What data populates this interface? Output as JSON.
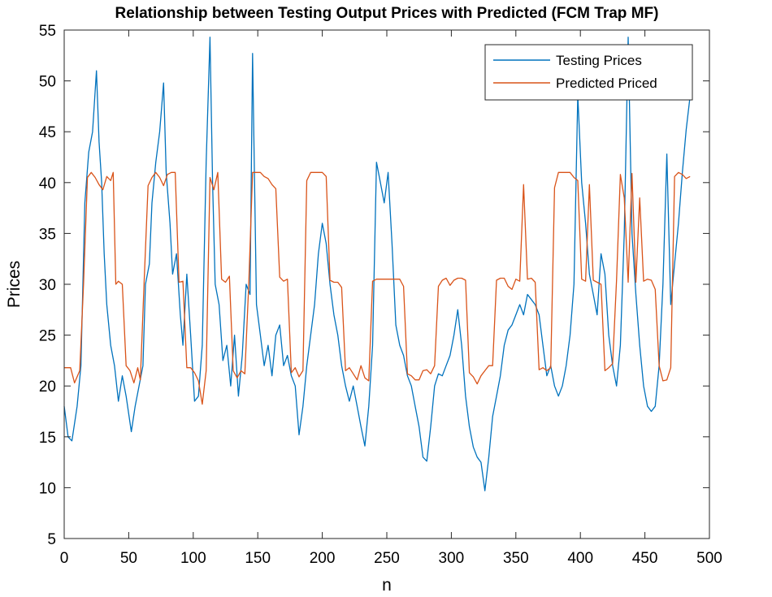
{
  "chart_data": {
    "type": "line",
    "title": "Relationship between Testing Output Prices with Predicted (FCM Trap MF)",
    "xlabel": "n",
    "ylabel": "Prices",
    "xlim": [
      0,
      500
    ],
    "ylim": [
      5,
      55
    ],
    "xticks": [
      "0",
      "50",
      "100",
      "150",
      "200",
      "250",
      "300",
      "350",
      "400",
      "450",
      "500"
    ],
    "yticks": [
      "5",
      "10",
      "15",
      "20",
      "25",
      "30",
      "35",
      "40",
      "45",
      "50",
      "55"
    ],
    "grid": false,
    "legend_position": "top-right",
    "series": [
      {
        "name": "Testing Prices",
        "color": "#0072BD",
        "x": [
          0,
          3,
          6,
          10,
          13,
          16,
          19,
          22,
          25,
          27,
          29,
          31,
          33,
          36,
          39,
          42,
          45,
          48,
          52,
          55,
          58,
          61,
          63,
          66,
          68,
          71,
          74,
          77,
          79,
          82,
          84,
          87,
          90,
          92,
          95,
          98,
          101,
          104,
          107,
          110,
          113,
          115,
          117,
          120,
          123,
          126,
          129,
          132,
          135,
          138,
          141,
          144,
          146,
          149,
          152,
          155,
          158,
          161,
          164,
          167,
          170,
          173,
          176,
          179,
          182,
          185,
          188,
          191,
          194,
          197,
          200,
          203,
          206,
          209,
          212,
          215,
          218,
          221,
          224,
          227,
          230,
          233,
          236,
          239,
          242,
          245,
          248,
          251,
          254,
          257,
          260,
          263,
          266,
          269,
          272,
          275,
          278,
          281,
          284,
          287,
          290,
          293,
          296,
          299,
          302,
          305,
          308,
          311,
          314,
          317,
          320,
          323,
          326,
          329,
          332,
          335,
          338,
          341,
          344,
          347,
          350,
          353,
          356,
          359,
          362,
          365,
          368,
          371,
          374,
          377,
          380,
          383,
          386,
          389,
          392,
          395,
          398,
          401,
          404,
          407,
          410,
          413,
          416,
          419,
          422,
          425,
          428,
          431,
          434,
          437,
          440,
          443,
          446,
          449,
          452,
          455,
          458,
          461,
          464,
          467,
          470,
          473,
          476,
          479,
          482,
          485
        ],
        "values": [
          18,
          15,
          14.6,
          18,
          22,
          38,
          43,
          45,
          51,
          44,
          40,
          33,
          28,
          24,
          22,
          18.5,
          21,
          19,
          15.5,
          18,
          20,
          22,
          30,
          32,
          38,
          42,
          45,
          49.8,
          41,
          36,
          31,
          33,
          27,
          24,
          31,
          25,
          18.5,
          19,
          24,
          42,
          54.3,
          40,
          30,
          28,
          22.5,
          24,
          20,
          25,
          19,
          23,
          30,
          29,
          52.7,
          28,
          25,
          22,
          24,
          21,
          25,
          26,
          22,
          23,
          21,
          20,
          15.2,
          18,
          22,
          25,
          28,
          33,
          36,
          34,
          30,
          27,
          25,
          22,
          20,
          18.5,
          20,
          18,
          16,
          14.1,
          18,
          24,
          42,
          40,
          38,
          41,
          34,
          26,
          24,
          23,
          21,
          20,
          18,
          16,
          13,
          12.6,
          16,
          20,
          21.2,
          21,
          22,
          23,
          25,
          27.5,
          24,
          19,
          16,
          14,
          13,
          12.5,
          9.7,
          13,
          17,
          19,
          21,
          24,
          25.5,
          26,
          27,
          28,
          27,
          29,
          28.5,
          28,
          27,
          24,
          21,
          22,
          20,
          19,
          20,
          22,
          25,
          30,
          48.6,
          40,
          36,
          31,
          29,
          27,
          33,
          31,
          25,
          22,
          20,
          24,
          35,
          54.3,
          35,
          29,
          24,
          20,
          18,
          17.5,
          18,
          22,
          30,
          42.8,
          28,
          32,
          36,
          41,
          45.2,
          48.5
        ]
      },
      {
        "name": "Predicted Priced",
        "color": "#D95319",
        "x": [
          0,
          5,
          8,
          12,
          15,
          18,
          21,
          24,
          27,
          30,
          33,
          36,
          38,
          40,
          42,
          45,
          48,
          51,
          54,
          57,
          59,
          62,
          65,
          68,
          71,
          74,
          77,
          80,
          83,
          86,
          89,
          92,
          95,
          98,
          101,
          104,
          107,
          110,
          113,
          116,
          119,
          122,
          125,
          128,
          131,
          134,
          137,
          140,
          143,
          146,
          149,
          152,
          155,
          158,
          161,
          164,
          167,
          170,
          173,
          176,
          179,
          182,
          185,
          188,
          191,
          194,
          197,
          200,
          203,
          206,
          209,
          212,
          215,
          218,
          221,
          224,
          227,
          230,
          233,
          236,
          239,
          242,
          245,
          248,
          251,
          254,
          257,
          260,
          263,
          266,
          269,
          272,
          275,
          278,
          281,
          284,
          287,
          290,
          293,
          296,
          299,
          302,
          305,
          308,
          311,
          314,
          317,
          320,
          323,
          326,
          329,
          332,
          335,
          338,
          341,
          344,
          347,
          350,
          353,
          356,
          359,
          362,
          365,
          368,
          371,
          374,
          377,
          380,
          383,
          386,
          389,
          392,
          395,
          398,
          401,
          404,
          407,
          410,
          413,
          416,
          419,
          422,
          425,
          428,
          431,
          434,
          437,
          440,
          443,
          446,
          449,
          452,
          455,
          458,
          461,
          464,
          467,
          470,
          473,
          476,
          479,
          482,
          485
        ],
        "values": [
          21.8,
          21.8,
          20.3,
          21.5,
          30,
          40.5,
          41,
          40.5,
          39.8,
          39.3,
          40.6,
          40.2,
          41,
          30,
          30.3,
          30,
          22,
          21.5,
          20.3,
          21.8,
          20.6,
          30.5,
          39.7,
          40.5,
          41,
          40.5,
          39.7,
          40.8,
          41,
          41,
          30.2,
          30.3,
          21.8,
          21.8,
          21.3,
          20.5,
          18.2,
          21.5,
          40.5,
          39.3,
          41,
          30.5,
          30.2,
          30.8,
          21.5,
          20.8,
          21.5,
          21.2,
          30,
          41,
          41,
          41,
          40.6,
          40.4,
          39.8,
          39.4,
          30.7,
          30.3,
          30.5,
          21.3,
          21.8,
          20.9,
          21.5,
          40.2,
          41,
          41,
          41,
          41,
          40.6,
          30.4,
          30.2,
          30.2,
          29.7,
          21.5,
          21.8,
          21.2,
          20.6,
          22,
          20.8,
          20.5,
          30.3,
          30.5,
          30.5,
          30.5,
          30.5,
          30.5,
          30.5,
          30.5,
          29.8,
          21.2,
          21,
          20.6,
          20.6,
          21.5,
          21.6,
          21.2,
          22,
          29.8,
          30.4,
          30.6,
          29.9,
          30.4,
          30.6,
          30.6,
          30.4,
          21.3,
          20.9,
          20.2,
          21,
          21.5,
          22,
          22,
          30.4,
          30.6,
          30.6,
          29.8,
          29.5,
          30.5,
          30.3,
          39.8,
          30.5,
          30.6,
          30.2,
          21.6,
          21.8,
          21.5,
          21.8,
          39.5,
          41,
          41,
          41,
          41,
          40.5,
          40.2,
          30.5,
          30.3,
          39.8,
          30.4,
          30.2,
          30,
          21.5,
          21.8,
          22.2,
          30.4,
          40.8,
          38.5,
          30.2,
          40.9,
          30.2,
          38.5,
          30.3,
          30.5,
          30.4,
          29.5,
          22,
          20.5,
          20.6,
          21.8,
          40.6,
          41,
          40.8,
          40.4,
          40.6
        ]
      }
    ]
  }
}
